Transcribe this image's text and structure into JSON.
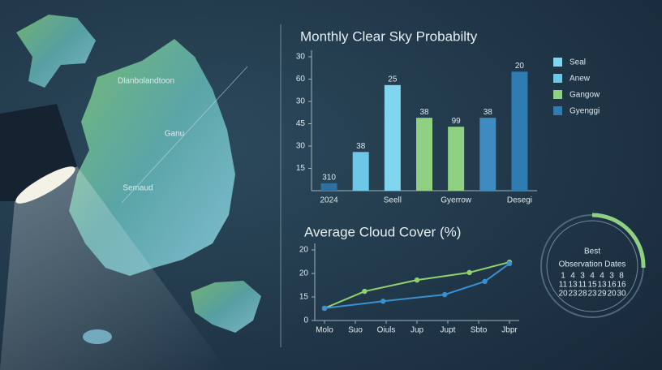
{
  "chart_data": [
    {
      "type": "bar",
      "title": "Monthly Clear Sky Probabilty",
      "categories": [
        "2024",
        null,
        "Seell",
        null,
        "Gyerrow",
        null,
        "Desegi"
      ],
      "values": [
        5,
        26,
        71,
        49,
        43,
        49,
        80
      ],
      "colors": [
        "#2f6f9e",
        "#6cc8e6",
        "#7fd6ee",
        "#8fd082",
        "#8fd082",
        "#3f8bc0",
        "#2f7cb3"
      ],
      "bar_annotations": [
        "310",
        "38",
        "25",
        "38",
        "99",
        "38",
        "20"
      ],
      "ylim": [
        0,
        90
      ],
      "yticks": [
        15,
        30,
        45,
        {
          "value": 60,
          "label": "30"
        },
        {
          "value": 75,
          "label": "60"
        },
        {
          "value": 90,
          "label": "30"
        }
      ],
      "legend": [
        {
          "name": "Seal",
          "color": "#7fd6ee"
        },
        {
          "name": "Anew",
          "color": "#6cc8e6"
        },
        {
          "name": "Gangow",
          "color": "#8fd082"
        },
        {
          "name": "Gyenggi",
          "color": "#2f7cb3"
        }
      ]
    },
    {
      "type": "line",
      "title": "Average Cloud Cover (%)",
      "xlim": [
        0,
        6
      ],
      "xticks": [
        {
          "value": 0,
          "label": "Molo"
        },
        {
          "value": 1,
          "label": "Suo"
        },
        {
          "value": 2,
          "label": "Oiuls"
        },
        {
          "value": 3,
          "label": "Jup"
        },
        {
          "value": 4,
          "label": "Jupt"
        },
        {
          "value": 5,
          "label": "Sbto"
        },
        {
          "value": 6,
          "label": "Jbpr"
        }
      ],
      "ylim": [
        0,
        15
      ],
      "yticks": [
        0,
        {
          "value": 5,
          "label": "15"
        },
        {
          "value": 10,
          "label": "20"
        },
        {
          "value": 15,
          "label": "20"
        }
      ],
      "series": [
        {
          "color": "#8fd16f",
          "x": [
            0,
            1.3,
            3,
            4.7,
            6
          ],
          "values": [
            2.6,
            6.2,
            8.6,
            10.2,
            12.4
          ]
        },
        {
          "color": "#3a8fd0",
          "x": [
            0,
            1.9,
            3.9,
            5.2,
            6
          ],
          "values": [
            2.6,
            4.1,
            5.5,
            8.3,
            12.1
          ]
        }
      ]
    }
  ],
  "calendar": {
    "title": "Best",
    "subtitle": "Observation Dates",
    "rows": [
      [
        1,
        4,
        3,
        4,
        4,
        3,
        8
      ],
      [
        11,
        13,
        11,
        15,
        13,
        16,
        16
      ],
      [
        20,
        23,
        28,
        23,
        29,
        20,
        30
      ]
    ]
  },
  "map": {
    "labels": [
      "Dlanbolandtoon",
      "Ganu",
      "Semaud"
    ]
  }
}
